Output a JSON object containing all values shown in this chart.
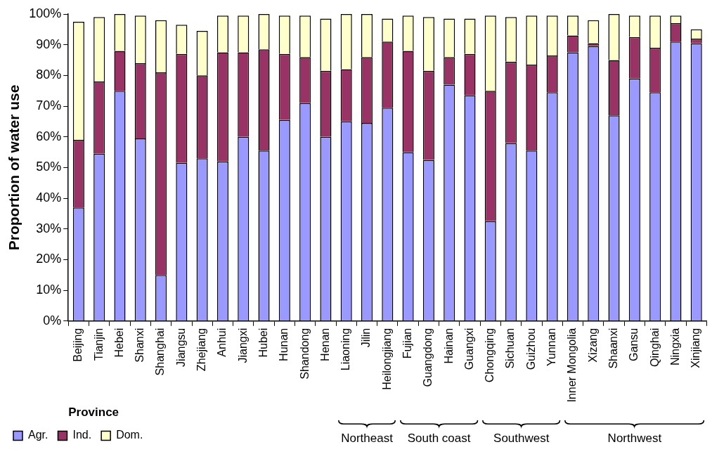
{
  "chart_data": {
    "type": "bar",
    "stacked": true,
    "ylabel": "Proportion of water use",
    "xlabel": "Province",
    "categories": [
      "Beijing",
      "Tianjin",
      "Hebei",
      "Shanxi",
      "Shanghai",
      "Jiangsu",
      "Zhejiang",
      "Anhui",
      "Jiangxi",
      "Hubei",
      "Hunan",
      "Shandong",
      "Henan",
      "Liaoning",
      "Jilin",
      "Heilongjiang",
      "Fujian",
      "Guangdong",
      "Hainan",
      "Guangxi",
      "Chongqing",
      "Sichuan",
      "Guizhou",
      "Yunnan",
      "Inner Mongolia",
      "Xizang",
      "Shaanxi",
      "Gansu",
      "Qinghai",
      "Ningxia",
      "Xinjiang"
    ],
    "series": [
      {
        "name": "Agr.",
        "color": "#9999ff",
        "values": [
          37,
          54.5,
          75,
          59.5,
          15,
          51.5,
          53,
          52,
          60,
          55.5,
          65.5,
          71,
          60,
          65,
          64.5,
          69.5,
          55,
          52.5,
          77,
          73.5,
          32.5,
          58,
          55.5,
          74.5,
          87.5,
          89.5,
          67,
          79,
          74.5,
          91,
          90.5
        ]
      },
      {
        "name": "Ind.",
        "color": "#993366",
        "values": [
          22,
          23.5,
          13,
          24.5,
          66,
          35.5,
          27,
          35.5,
          27.5,
          33,
          21.5,
          15,
          21.5,
          17,
          21.5,
          21.5,
          33,
          29,
          9,
          13.5,
          42.5,
          26.5,
          28,
          12,
          5.5,
          1,
          18,
          13.5,
          14.5,
          6,
          1.5
        ]
      },
      {
        "name": "Dom.",
        "color": "#ffffcc",
        "values": [
          38.5,
          21,
          12,
          15.5,
          17,
          9.5,
          14.5,
          12,
          12,
          11.5,
          12.5,
          13.5,
          17,
          18,
          14,
          7.5,
          11.5,
          17.5,
          12.5,
          11.5,
          24.5,
          14.5,
          16,
          13,
          6.5,
          7.5,
          15,
          7,
          10.5,
          2.5,
          3
        ]
      }
    ],
    "ylim": [
      0,
      100
    ],
    "yticks": [
      {
        "value": 0,
        "label": "0%"
      },
      {
        "value": 10,
        "label": "10%"
      },
      {
        "value": 20,
        "label": "20%"
      },
      {
        "value": 30,
        "label": "30%"
      },
      {
        "value": 40,
        "label": "40%"
      },
      {
        "value": 50,
        "label": "50%"
      },
      {
        "value": 60,
        "label": "60%"
      },
      {
        "value": 70,
        "label": "70%"
      },
      {
        "value": 80,
        "label": "80%"
      },
      {
        "value": 90,
        "label": "90%"
      },
      {
        "value": 100,
        "label": "100%"
      }
    ],
    "grid": false,
    "legend": "bottom left",
    "annotations": [
      "Northeast",
      "South coast",
      "Southwest",
      "Northwest"
    ]
  }
}
